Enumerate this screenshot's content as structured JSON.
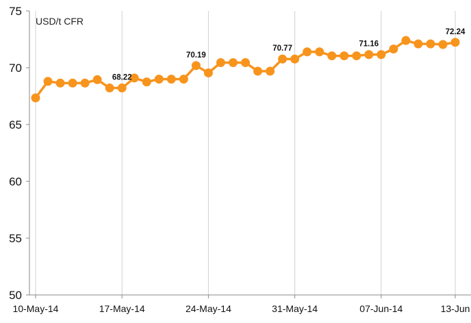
{
  "chart_data": {
    "type": "line",
    "unit_label": "USD/t CFR",
    "ylim": [
      50,
      75
    ],
    "y_ticks": [
      50,
      55,
      60,
      65,
      70,
      75
    ],
    "x_tick_labels": [
      "10-May-14",
      "17-May-14",
      "24-May-14",
      "31-May-14",
      "07-Jun-14",
      "13-Jun"
    ],
    "x_tick_positions": [
      0,
      7,
      14,
      21,
      28,
      34
    ],
    "grid": {
      "vertical": true,
      "horizontal": false
    },
    "series": [
      {
        "color": "#F7941D",
        "x": [
          0,
          1,
          2,
          3,
          4,
          5,
          6,
          7,
          8,
          9,
          10,
          11,
          12,
          13,
          14,
          15,
          16,
          17,
          18,
          19,
          20,
          21,
          22,
          23,
          24,
          25,
          26,
          27,
          28,
          29,
          30,
          31,
          32,
          33,
          34
        ],
        "values": [
          67.35,
          68.8,
          68.65,
          68.65,
          68.65,
          68.95,
          68.22,
          68.22,
          69.1,
          68.75,
          69.0,
          69.0,
          69.0,
          70.19,
          69.55,
          70.45,
          70.45,
          70.45,
          69.7,
          69.7,
          70.77,
          70.77,
          71.4,
          71.4,
          71.05,
          71.05,
          71.05,
          71.16,
          71.16,
          71.65,
          72.4,
          72.1,
          72.1,
          72.05,
          72.24
        ]
      }
    ],
    "data_labels": [
      {
        "index": 7,
        "text": "68.22"
      },
      {
        "index": 13,
        "text": "70.19"
      },
      {
        "index": 20,
        "text": "70.77"
      },
      {
        "index": 27,
        "text": "71.16"
      },
      {
        "index": 34,
        "text": "72.24"
      }
    ]
  }
}
